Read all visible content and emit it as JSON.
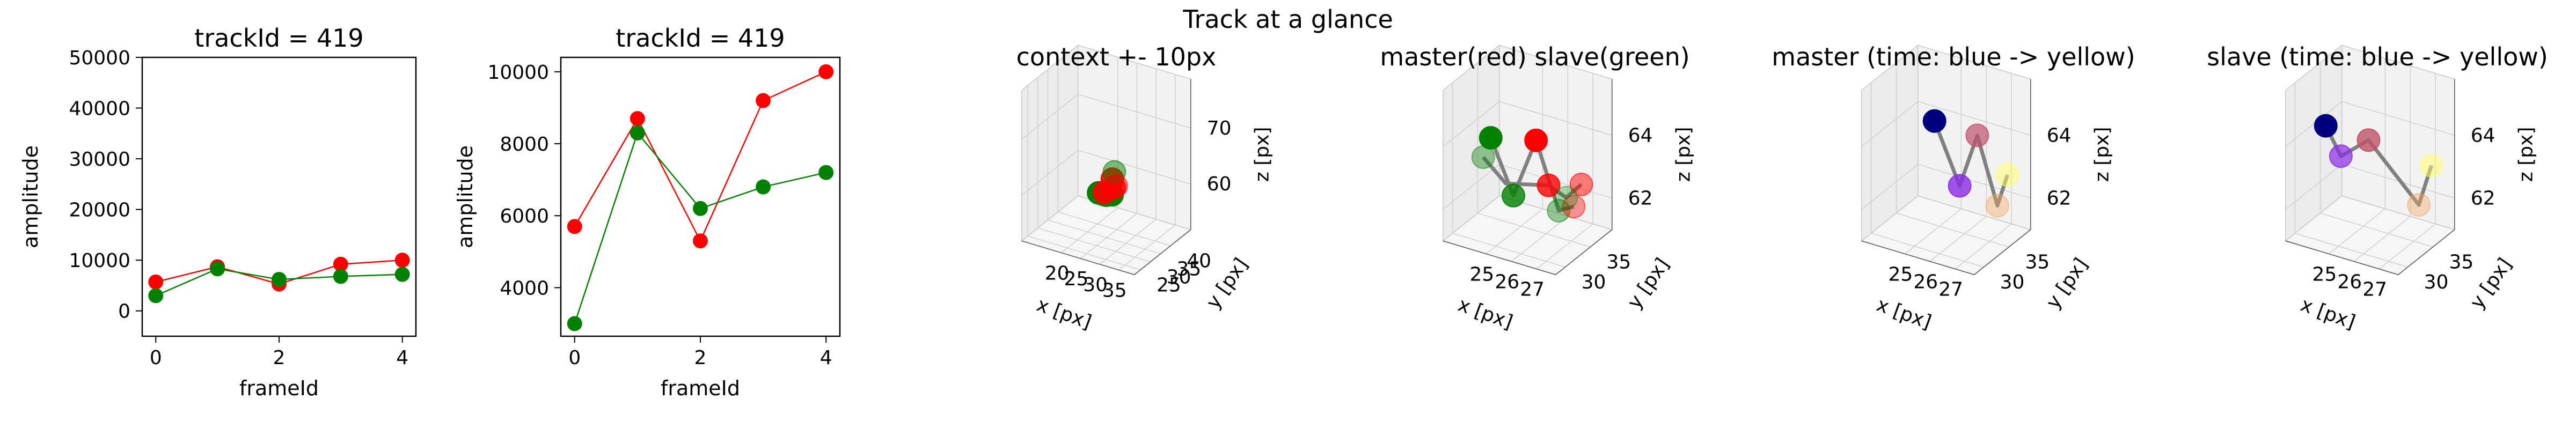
{
  "figure": {
    "suptitle": "Track at a glance"
  },
  "colors": {
    "master": "#ff0000",
    "slave": "#008000",
    "trajectory_line": "#808080",
    "pane": "#f2f2f2",
    "grid": "#d0d0d0"
  },
  "chart_data": [
    {
      "type": "line",
      "title": "trackId = 419",
      "xlabel": "frameId",
      "ylabel": "amplitude",
      "xlim": [
        -0.22,
        4.22
      ],
      "ylim": [
        -5000,
        50000
      ],
      "xticks": [
        0,
        2,
        4
      ],
      "yticks": [
        0,
        10000,
        20000,
        30000,
        40000,
        50000
      ],
      "x": [
        0,
        1,
        2,
        3,
        4
      ],
      "series": [
        {
          "color": "#ff0000",
          "values": [
            5700,
            8700,
            5300,
            9200,
            10000
          ]
        },
        {
          "color": "#008000",
          "values": [
            3000,
            8300,
            6200,
            6800,
            7200
          ]
        }
      ]
    },
    {
      "type": "line",
      "title": "trackId = 419",
      "xlabel": "frameId",
      "ylabel": "amplitude",
      "xlim": [
        -0.22,
        4.22
      ],
      "ylim": [
        2650,
        10400
      ],
      "xticks": [
        0,
        2,
        4
      ],
      "yticks": [
        4000,
        6000,
        8000,
        10000
      ],
      "x": [
        0,
        1,
        2,
        3,
        4
      ],
      "series": [
        {
          "color": "#ff0000",
          "values": [
            5700,
            8700,
            5300,
            9200,
            10000
          ]
        },
        {
          "color": "#008000",
          "values": [
            3000,
            8300,
            6200,
            6800,
            7200
          ]
        }
      ]
    },
    {
      "type": "scatter3d",
      "title": "context +- 10px",
      "xlabel": "x [px]",
      "ylabel": "y [px]",
      "zlabel": "z [px]",
      "xlim": [
        17,
        38
      ],
      "ylim": [
        23,
        43
      ],
      "zlim": [
        53,
        76
      ],
      "xticks": [
        20,
        25,
        30,
        35
      ],
      "yticks": [
        25,
        30,
        35,
        40
      ],
      "zticks": [
        60,
        70
      ],
      "points": [
        {
          "x": 25,
          "y": 31,
          "z": 61,
          "color": "#008000",
          "alpha": 1
        },
        {
          "x": 26,
          "y": 31,
          "z": 61,
          "color": "#008000",
          "alpha": 1
        },
        {
          "x": 27,
          "y": 31,
          "z": 61,
          "color": "#008000",
          "alpha": 1
        },
        {
          "x": 28,
          "y": 32,
          "z": 61,
          "color": "#008000",
          "alpha": 1
        },
        {
          "x": 26,
          "y": 32,
          "z": 61,
          "color": "#ff0000",
          "alpha": 0.9
        },
        {
          "x": 27,
          "y": 34,
          "z": 63,
          "color": "#ff0000",
          "alpha": 0.9
        },
        {
          "x": 28,
          "y": 33,
          "z": 62,
          "color": "#ff0000",
          "alpha": 0.8
        },
        {
          "x": 27,
          "y": 35,
          "z": 64,
          "color": "#008000",
          "alpha": 0.5
        },
        {
          "x": 28,
          "y": 34,
          "z": 62,
          "color": "#ff0000",
          "alpha": 0.5
        }
      ]
    },
    {
      "type": "scatter3d",
      "title": "master(red) slave(green)",
      "xlabel": "x [px]",
      "ylabel": "y [px]",
      "zlabel": "z [px]",
      "xlim": [
        24.4,
        27.6
      ],
      "ylim": [
        28.5,
        36.5
      ],
      "zlim": [
        61.2,
        65.3
      ],
      "xticks": [
        25,
        26,
        27
      ],
      "yticks": [
        30,
        35
      ],
      "zticks": [
        62,
        64
      ],
      "lines": [
        {
          "color": "#808080",
          "points": [
            [
              24.8,
              30,
              64.4
            ],
            [
              25.5,
              31,
              62.6
            ],
            [
              26.2,
              32,
              64.4
            ],
            [
              26.9,
              33,
              62.2
            ],
            [
              27.3,
              34,
              62.3
            ]
          ]
        },
        {
          "color": "#808080",
          "points": [
            [
              24.6,
              29.5,
              63.8
            ],
            [
              25.3,
              30.5,
              63.0
            ],
            [
              26.6,
              32.5,
              63.0
            ],
            [
              27.1,
              33.5,
              62.6
            ],
            [
              27.4,
              35,
              62.9
            ]
          ]
        }
      ],
      "points": [
        {
          "x": 24.8,
          "y": 30,
          "z": 64.4,
          "color": "#008000",
          "alpha": 1
        },
        {
          "x": 25.5,
          "y": 31,
          "z": 62.6,
          "color": "#008000",
          "alpha": 0.8
        },
        {
          "x": 24.6,
          "y": 29.5,
          "z": 63.8,
          "color": "#008000",
          "alpha": 0.4
        },
        {
          "x": 26.2,
          "y": 32,
          "z": 64.4,
          "color": "#ff0000",
          "alpha": 1
        },
        {
          "x": 26.6,
          "y": 32.5,
          "z": 63.0,
          "color": "#ff0000",
          "alpha": 0.8
        },
        {
          "x": 26.9,
          "y": 33,
          "z": 62.2,
          "color": "#008000",
          "alpha": 0.4
        },
        {
          "x": 27.3,
          "y": 34,
          "z": 62.3,
          "color": "#ff0000",
          "alpha": 0.4
        },
        {
          "x": 27.4,
          "y": 35,
          "z": 62.9,
          "color": "#ff0000",
          "alpha": 0.5
        },
        {
          "x": 27.1,
          "y": 33.5,
          "z": 62.6,
          "color": "#008000",
          "alpha": 0.3
        }
      ]
    },
    {
      "type": "scatter3d",
      "title": "master (time: blue -> yellow)",
      "xlabel": "x [px]",
      "ylabel": "y [px]",
      "zlabel": "z [px]",
      "xlim": [
        24.4,
        27.6
      ],
      "ylim": [
        28.5,
        36.5
      ],
      "zlim": [
        61.2,
        65.3
      ],
      "xticks": [
        25,
        26,
        27
      ],
      "yticks": [
        30,
        35
      ],
      "zticks": [
        62,
        64
      ],
      "lines": [
        {
          "color": "#808080",
          "points": [
            [
              25.6,
              31,
              65.0
            ],
            [
              26.4,
              32,
              63.0
            ],
            [
              26.9,
              33,
              64.6
            ],
            [
              27.3,
              35,
              62.2
            ],
            [
              27.5,
              36,
              63.1
            ]
          ]
        }
      ],
      "points": [
        {
          "x": 25.6,
          "y": 31,
          "z": 65.0,
          "color": "#00007f",
          "alpha": 1
        },
        {
          "x": 26.4,
          "y": 32,
          "z": 63.0,
          "color": "#8a2be2",
          "alpha": 0.8
        },
        {
          "x": 26.9,
          "y": 33,
          "z": 64.6,
          "color": "#c0506a",
          "alpha": 0.7
        },
        {
          "x": 27.3,
          "y": 35,
          "z": 62.2,
          "color": "#f4a460",
          "alpha": 0.4
        },
        {
          "x": 27.5,
          "y": 36,
          "z": 63.1,
          "color": "#ffff66",
          "alpha": 0.5
        }
      ]
    },
    {
      "type": "scatter3d",
      "title": "slave (time: blue -> yellow)",
      "xlabel": "x [px]",
      "ylabel": "y [px]",
      "zlabel": "z [px]",
      "xlim": [
        24.4,
        27.6
      ],
      "ylim": [
        28.5,
        36.5
      ],
      "zlim": [
        61.2,
        65.3
      ],
      "xticks": [
        25,
        26,
        27
      ],
      "yticks": [
        30,
        35
      ],
      "zticks": [
        62,
        64
      ],
      "lines": [
        {
          "color": "#808080",
          "points": [
            [
              24.6,
              29.5,
              64.8
            ],
            [
              25.0,
              30.5,
              63.8
            ],
            [
              25.9,
              31.5,
              64.4
            ],
            [
              27.2,
              35,
              62.2
            ],
            [
              27.5,
              36,
              63.4
            ]
          ]
        }
      ],
      "points": [
        {
          "x": 24.6,
          "y": 29.5,
          "z": 64.8,
          "color": "#00007f",
          "alpha": 1
        },
        {
          "x": 25.0,
          "y": 30.5,
          "z": 63.8,
          "color": "#8a2be2",
          "alpha": 0.7
        },
        {
          "x": 25.9,
          "y": 31.5,
          "z": 64.4,
          "color": "#c0506a",
          "alpha": 0.8
        },
        {
          "x": 27.2,
          "y": 35,
          "z": 62.2,
          "color": "#f4a460",
          "alpha": 0.4
        },
        {
          "x": 27.5,
          "y": 36,
          "z": 63.4,
          "color": "#ffff66",
          "alpha": 0.5
        }
      ]
    }
  ]
}
